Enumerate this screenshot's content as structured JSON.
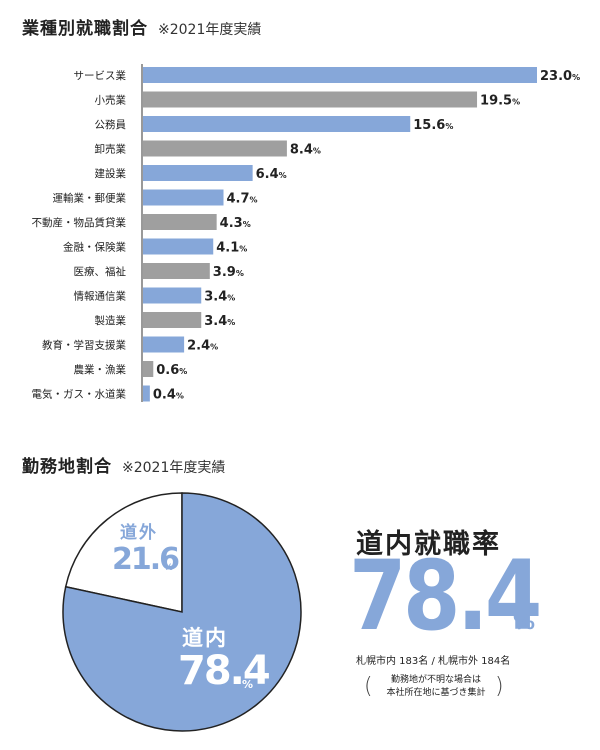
{
  "section1": {
    "title": "業種別就職割合",
    "note": "※2021年度実績"
  },
  "section2": {
    "title": "勤務地割合",
    "note": "※2021年度実績"
  },
  "colors": {
    "blue": "#86a7d9",
    "gray": "#9f9f9f"
  },
  "chart_data": [
    {
      "type": "bar",
      "orientation": "horizontal",
      "categories": [
        "サービス業",
        "小売業",
        "公務員",
        "卸売業",
        "建設業",
        "運輸業・郵便業",
        "不動産・物品賃貸業",
        "金融・保険業",
        "医療、福祉",
        "情報通信業",
        "製造業",
        "教育・学習支援業",
        "農業・漁業",
        "電気・ガス・水道業"
      ],
      "values": [
        23.0,
        19.5,
        15.6,
        8.4,
        6.4,
        4.7,
        4.3,
        4.1,
        3.9,
        3.4,
        3.4,
        2.4,
        0.6,
        0.4
      ],
      "value_labels": [
        "23.0",
        "19.5",
        "15.6",
        "8.4",
        "6.4",
        "4.7",
        "4.3",
        "4.1",
        "3.9",
        "3.4",
        "3.4",
        "2.4",
        "0.6",
        "0.4"
      ],
      "bar_colors": [
        "blue",
        "gray",
        "blue",
        "gray",
        "blue",
        "blue",
        "gray",
        "blue",
        "gray",
        "blue",
        "gray",
        "blue",
        "gray",
        "blue"
      ],
      "unit": "%",
      "xlim": [
        0,
        23.0
      ]
    },
    {
      "type": "pie",
      "slices": [
        {
          "name": "道内",
          "value": 78.4,
          "label": "78.4",
          "color": "blue"
        },
        {
          "name": "道外",
          "value": 21.6,
          "label": "21.6",
          "color": "white"
        }
      ],
      "unit": "%"
    }
  ],
  "summary": {
    "title": "道内就職率",
    "value": "78.4",
    "unit": "%",
    "breakdown": "札幌市内 183名 / 札幌市外 184名",
    "footnote_line1": "勤務地が不明な場合は",
    "footnote_line2": "本社所在地に基づき集計",
    "paren_left": "(",
    "paren_right": ")"
  }
}
